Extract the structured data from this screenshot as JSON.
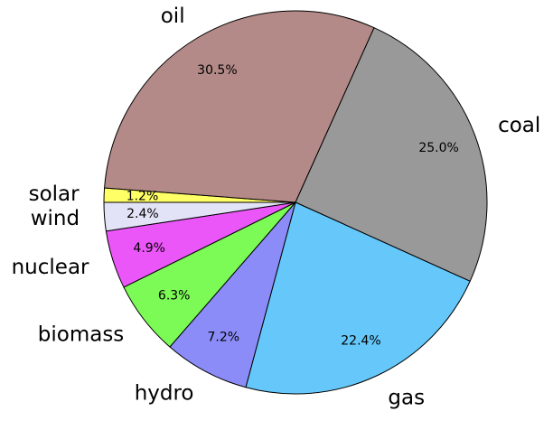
{
  "chart_data": {
    "type": "pie",
    "start_angle_deg": 180,
    "direction": "clockwise",
    "slices": [
      {
        "label": "solar",
        "value": 1.2,
        "pct_label": "1.2%",
        "color": "#ffff66"
      },
      {
        "label": "oil",
        "value": 30.5,
        "pct_label": "30.5%",
        "color": "#b38a87"
      },
      {
        "label": "coal",
        "value": 25.0,
        "pct_label": "25.0%",
        "color": "#999999"
      },
      {
        "label": "gas",
        "value": 22.4,
        "pct_label": "22.4%",
        "color": "#66c8fa"
      },
      {
        "label": "hydro",
        "value": 7.2,
        "pct_label": "7.2%",
        "color": "#8c8cf8"
      },
      {
        "label": "biomass",
        "value": 6.3,
        "pct_label": "6.3%",
        "color": "#7cfa56"
      },
      {
        "label": "nuclear",
        "value": 4.9,
        "pct_label": "4.9%",
        "color": "#eb56f8"
      },
      {
        "label": "wind",
        "value": 2.4,
        "pct_label": "2.4%",
        "color": "#e3e3f8"
      }
    ]
  }
}
